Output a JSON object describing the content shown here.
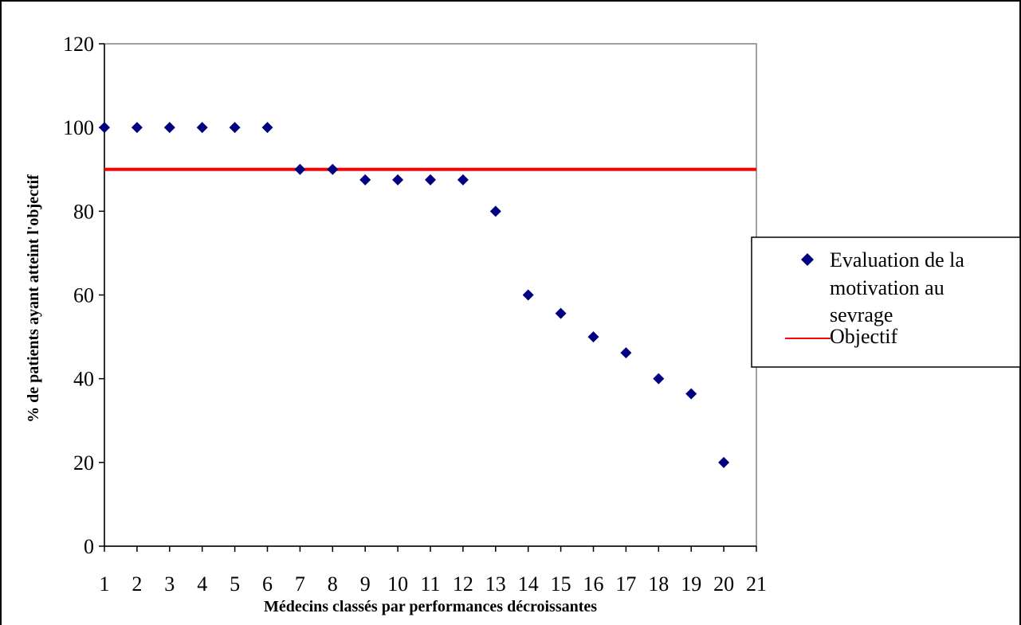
{
  "chart_data": {
    "type": "scatter",
    "xlabel": "Médecins classés par performances décroissantes",
    "ylabel": "% de patients ayant atteint l'objectif",
    "xlim": [
      1,
      21
    ],
    "ylim": [
      0,
      120
    ],
    "x_ticks": [
      "1",
      "2",
      "3",
      "4",
      "5",
      "6",
      "7",
      "8",
      "9",
      "10",
      "11",
      "12",
      "13",
      "14",
      "15",
      "16",
      "17",
      "18",
      "19",
      "20",
      "21"
    ],
    "y_ticks": [
      "0",
      "20",
      "40",
      "60",
      "80",
      "100",
      "120"
    ],
    "grid": false,
    "legend_position": "right",
    "series": [
      {
        "name": "Evaluation de la motivation au sevrage",
        "kind": "scatter",
        "marker": "diamond",
        "color": "#000080",
        "x": [
          1,
          2,
          3,
          4,
          5,
          6,
          7,
          8,
          9,
          10,
          11,
          12,
          13,
          14,
          15,
          16,
          17,
          18,
          19,
          20
        ],
        "y": [
          100,
          100,
          100,
          100,
          100,
          100,
          90,
          90,
          87.5,
          87.5,
          87.5,
          87.5,
          80,
          60,
          55.6,
          50,
          46.2,
          40,
          36.4,
          20
        ]
      },
      {
        "name": "Objectif",
        "kind": "line",
        "color": "#ff0000",
        "y_constant": 90
      }
    ],
    "legend": {
      "scatter_label_lines": [
        "Evaluation de la",
        "motivation au",
        "sevrage"
      ],
      "line_label": "Objectif"
    }
  }
}
